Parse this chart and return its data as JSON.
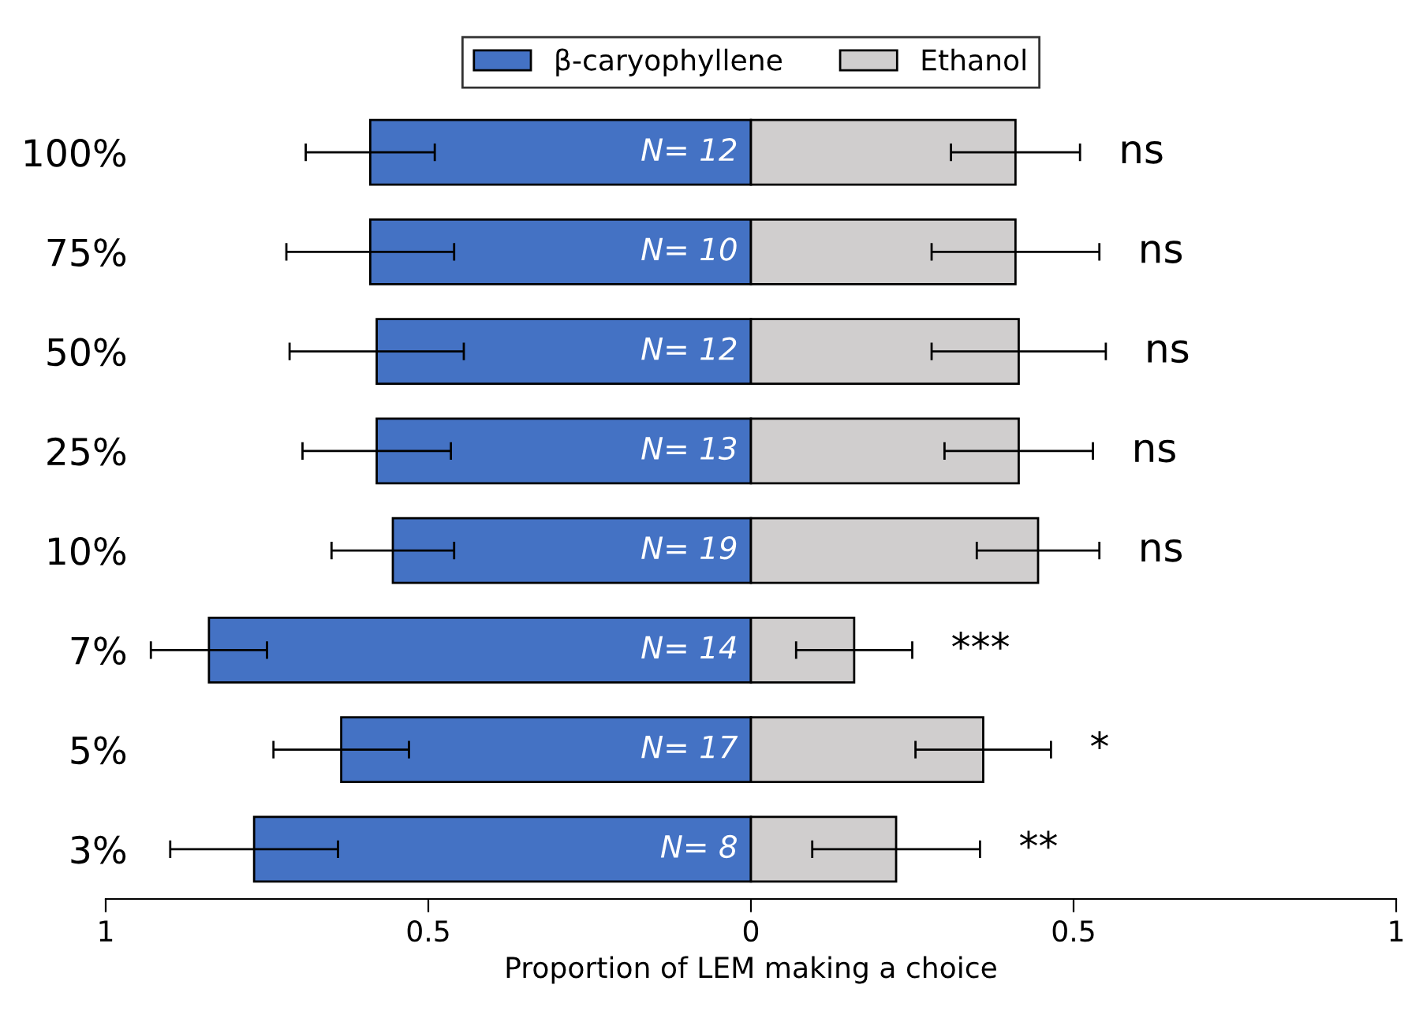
{
  "chart_data": {
    "type": "bar",
    "orientation": "horizontal",
    "stacked": true,
    "xlabel": "Proportion of LEM making a choice",
    "categories": [
      "100%",
      "75%",
      "50%",
      "25%",
      "10%",
      "7%",
      "5%",
      "3%"
    ],
    "series": [
      {
        "name": "β-caryophyllene",
        "color": "#4472c4",
        "values": [
          -0.59,
          -0.59,
          -0.58,
          -0.58,
          -0.555,
          -0.84,
          -0.635,
          -0.77
        ],
        "errors": [
          0.1,
          0.13,
          0.135,
          0.115,
          0.095,
          0.09,
          0.105,
          0.13
        ]
      },
      {
        "name": "Ethanol",
        "color": "#d0cece",
        "values": [
          0.41,
          0.41,
          0.415,
          0.415,
          0.445,
          0.16,
          0.36,
          0.225
        ],
        "errors": [
          0.1,
          0.13,
          0.135,
          0.115,
          0.095,
          0.09,
          0.105,
          0.13
        ]
      }
    ],
    "xlim": [
      -1,
      1
    ],
    "xticks": [
      {
        "value": -1,
        "label": "1"
      },
      {
        "value": -0.5,
        "label": "0.5"
      },
      0,
      0.5,
      1
    ],
    "annotations": [
      "N= 12",
      "N= 10",
      "N= 12",
      "N= 13",
      "N= 19",
      "N= 14",
      "N= 17",
      "N= 8",
      "ns",
      "ns",
      "ns",
      "ns",
      "ns",
      "***",
      "*",
      "**"
    ],
    "legend": "top",
    "grid": false
  }
}
